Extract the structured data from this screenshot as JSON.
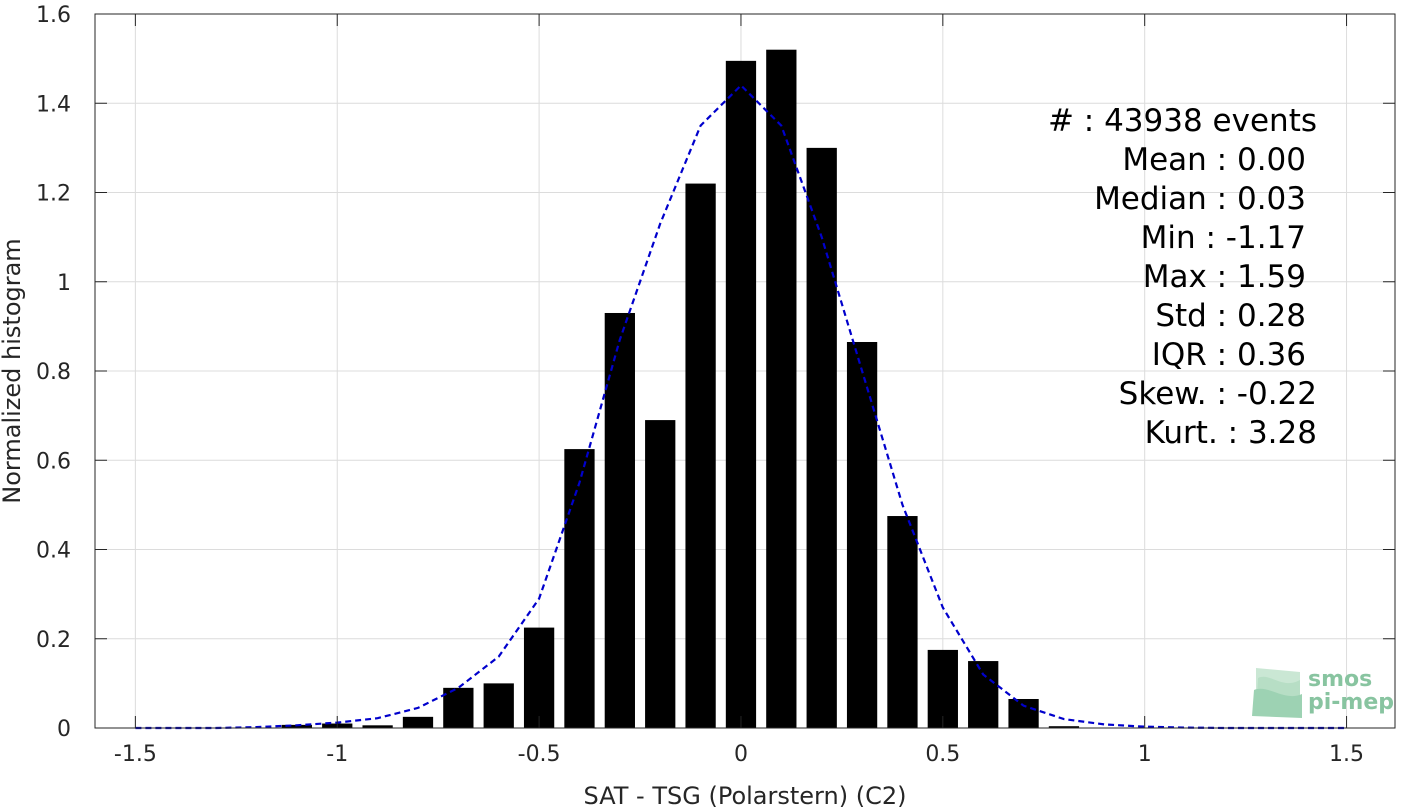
{
  "chart_data": {
    "type": "bar",
    "title": "",
    "xlabel": "SAT - TSG (Polarstern) (C2)",
    "ylabel": "Normalized histogram",
    "xlim": [
      -1.6,
      1.62
    ],
    "ylim": [
      0,
      1.6
    ],
    "xticks": [
      -1.5,
      -1,
      -0.5,
      0,
      0.5,
      1,
      1.5
    ],
    "xtick_labels": [
      "-1.5",
      "-1",
      "-0.5",
      "0",
      "0.5",
      "1",
      "1.5"
    ],
    "yticks": [
      0,
      0.2,
      0.4,
      0.6,
      0.8,
      1,
      1.2,
      1.4,
      1.6
    ],
    "ytick_labels": [
      "0",
      "0.2",
      "0.4",
      "0.6",
      "0.8",
      "1",
      "1.2",
      "1.4",
      "1.6"
    ],
    "grid": true,
    "bar_width": 0.075,
    "bar_color": "#000000",
    "bars": {
      "x": [
        -1.1,
        -1.0,
        -0.9,
        -0.8,
        -0.7,
        -0.6,
        -0.5,
        -0.4,
        -0.3,
        -0.2,
        -0.1,
        0.0,
        0.1,
        0.2,
        0.3,
        0.4,
        0.5,
        0.6,
        0.7,
        0.8
      ],
      "values": [
        0.007,
        0.01,
        0.006,
        0.025,
        0.09,
        0.1,
        0.225,
        0.625,
        0.93,
        0.69,
        1.22,
        1.495,
        1.52,
        1.3,
        0.865,
        0.475,
        0.175,
        0.15,
        0.065,
        0.004
      ]
    },
    "fit_curve": {
      "style": "dashed",
      "color": "#0000cc",
      "x": [
        -1.5,
        -1.3,
        -1.2,
        -1.1,
        -1.0,
        -0.9,
        -0.8,
        -0.7,
        -0.6,
        -0.5,
        -0.4,
        -0.3,
        -0.2,
        -0.1,
        0.0,
        0.1,
        0.2,
        0.3,
        0.4,
        0.5,
        0.6,
        0.7,
        0.8,
        0.9,
        1.0,
        1.1,
        1.2,
        1.3,
        1.5
      ],
      "values": [
        0.0,
        0.0,
        0.002,
        0.006,
        0.012,
        0.022,
        0.045,
        0.09,
        0.16,
        0.29,
        0.55,
        0.87,
        1.13,
        1.35,
        1.44,
        1.35,
        1.1,
        0.8,
        0.5,
        0.27,
        0.12,
        0.05,
        0.02,
        0.008,
        0.003,
        0.001,
        0.0,
        0.0,
        0.0
      ]
    },
    "annotations": [
      "#  : 43938 events",
      "Mean : 0.00",
      "Median : 0.03",
      "Min : -1.17",
      "Max : 1.59",
      "Std : 0.28",
      "IQR : 0.36",
      "Skew. : -0.22",
      "Kurt. : 3.28"
    ]
  },
  "logo": {
    "line1": "smos",
    "line2": "pi-mep",
    "color": "#88c4a0"
  }
}
